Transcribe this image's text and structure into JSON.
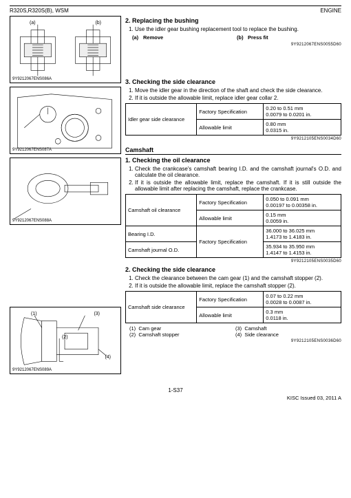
{
  "header": {
    "left": "R320S,R320S(B), WSM",
    "right": "ENGINE"
  },
  "sec2": {
    "title": "2. Replacing the bushing",
    "step1": "Use the idler gear bushing replacement tool to replace the bushing.",
    "a_key": "(a)",
    "a_val": "Remove",
    "b_key": "(b)",
    "b_val": "Press fit",
    "docnum": "9Y9212067ENS0055D60"
  },
  "fig1": {
    "a": "(a)",
    "b": "(b)",
    "code": "9Y9212067ENS086A"
  },
  "fig2": {
    "code": "9Y9212067ENS087A"
  },
  "fig3": {
    "code": "9Y9212067ENS088A"
  },
  "fig4": {
    "l1": "(1)",
    "l2": "(2)",
    "l3": "(3)",
    "l4": "(4)",
    "code": "9Y9212067ENS089A"
  },
  "sec3": {
    "title": "3. Checking the side clearance",
    "step1": "Move the idler gear in the direction of the shaft and check the side clearance.",
    "step2": "If it is outside the allowable limit, replace idler gear collar 2.",
    "tbl": {
      "name": "Idler gear side clearance",
      "fs_label": "Factory Specification",
      "fs_val": "0.20 to 0.51 mm\n0.0079 to 0.0201 in.",
      "al_label": "Allowable limit",
      "al_val": "0.80 mm\n0.0315 in."
    },
    "docnum": "9Y9212105ENS0034D60"
  },
  "cam": {
    "title": "Camshaft"
  },
  "cam1": {
    "title": "1. Checking the oil clearance",
    "step1": "Check the crankcase's camshaft bearing I.D. and the camshaft journal's O.D. and calculate the oil clearance.",
    "step2": "If it is outside the allowable limit, replace the camshaft. If it is still outside the allowable limit after replacing the camshaft, replace the crankcase.",
    "r1_name": "Camshaft oil clearance",
    "fs_label": "Factory Specification",
    "r1_fs": "0.050 to 0.091 mm\n0.00197 to 0.00358 in.",
    "al_label": "Allowable limit",
    "r1_al": "0.15 mm\n0.0059 in.",
    "r2_name": "Bearing I.D.",
    "r2_fs": "36.000 to 36.025 mm\n1.4173 to 1.4183 in.",
    "r3_name": "Camshaft journal O.D.",
    "r3_fs": "35.934 to 35.950 mm\n1.4147 to 1.4153 in.",
    "docnum": "9Y9212105ENS0035D60"
  },
  "cam2": {
    "title": "2. Checking the side clearance",
    "step1": "Check the clearance between the cam gear (1) and the camshaft stopper (2).",
    "step2": "If it is outside the allowable limit, replace the camshaft stopper (2).",
    "tbl": {
      "name": "Camshaft side clearance",
      "fs_label": "Factory Specification",
      "fs_val": "0.07 to 0.22 mm\n0.0028 to 0.0087 in.",
      "al_label": "Allowable limit",
      "al_val": "0.3 mm\n0.0118 in."
    },
    "leg1k": "(1)",
    "leg1v": "Cam gear",
    "leg2k": "(2)",
    "leg2v": "Camshaft stopper",
    "leg3k": "(3)",
    "leg3v": "Camshaft",
    "leg4k": "(4)",
    "leg4v": "Side clearance",
    "docnum": "9Y9212105ENS0036D60"
  },
  "footer": {
    "page": "1-S37",
    "issued": "KISC Issued 03, 2011 A"
  }
}
